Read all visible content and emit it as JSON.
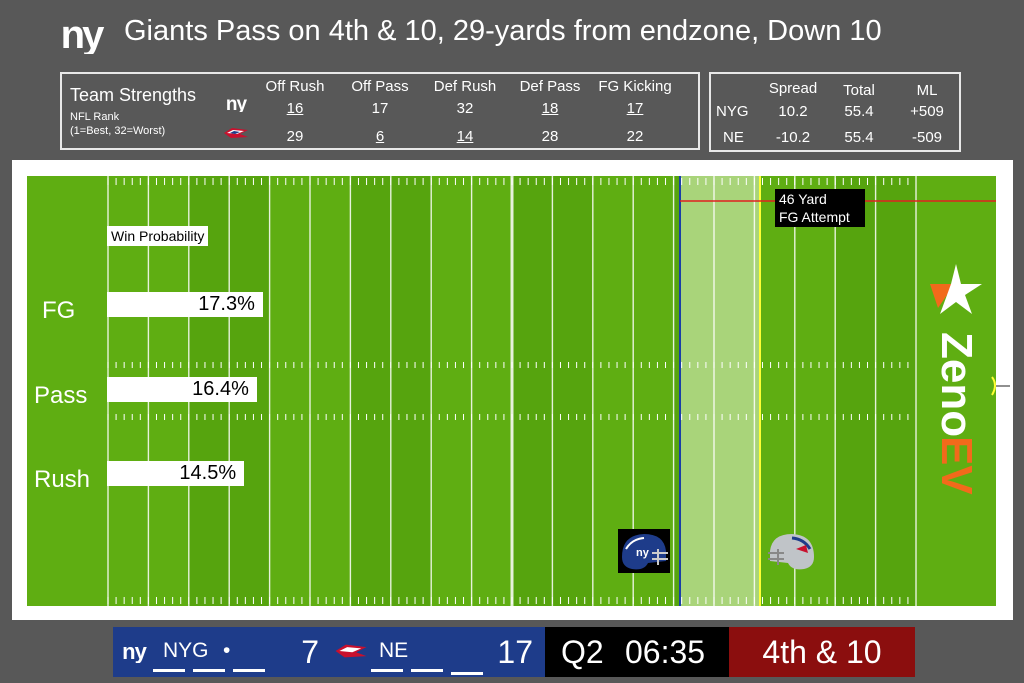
{
  "header": {
    "title": "Giants Pass on 4th & 10, 29-yards from endzone, Down 10"
  },
  "strengths": {
    "title": "Team Strengths",
    "subtitle_line1": "NFL Rank",
    "subtitle_line2": "(1=Best, 32=Worst)",
    "columns": [
      "Off Rush",
      "Off Pass",
      "Def Rush",
      "Def Pass",
      "FG Kicking"
    ],
    "rows": [
      {
        "team": "NYG",
        "values": [
          "16",
          "17",
          "32",
          "18",
          "17"
        ],
        "underline": [
          true,
          false,
          false,
          true,
          true
        ]
      },
      {
        "team": "NE",
        "values": [
          "29",
          "6",
          "14",
          "28",
          "22"
        ],
        "underline": [
          false,
          true,
          true,
          false,
          false
        ]
      }
    ]
  },
  "odds": {
    "columns": [
      "Spread",
      "Total",
      "ML"
    ],
    "rows": [
      {
        "team": "NYG",
        "spread": "10.2",
        "total": "55.4",
        "ml": "+509"
      },
      {
        "team": "NE",
        "spread": "-10.2",
        "total": "55.4",
        "ml": "-509"
      }
    ]
  },
  "field": {
    "win_prob_label": "Win Probability",
    "fg_attempt_line1": "46 Yard",
    "fg_attempt_line2": "FG Attempt",
    "plays": [
      {
        "label": "FG",
        "prob": "17.3%",
        "value": 17.3
      },
      {
        "label": "Pass",
        "prob": "16.4%",
        "value": 16.4
      },
      {
        "label": "Rush",
        "prob": "14.5%",
        "value": 14.5
      }
    ],
    "colors": {
      "turf": "#5fae12",
      "turf_alt": "#56a40e",
      "first_down_zone": "#a9d47a",
      "los": "#1a3fa8",
      "first_down": "#ffff33",
      "fg_line": "#e02020"
    },
    "brand": {
      "word1": "Zeno",
      "word2": "EV",
      "color1": "#ffffff",
      "color2": "#f26a1b"
    }
  },
  "scorebar": {
    "home": {
      "abbr": "NYG",
      "possession": "•",
      "score": "7"
    },
    "away": {
      "abbr": "NE",
      "score": "17"
    },
    "quarter": "Q2",
    "clock": "06:35",
    "down_distance": "4th & 10",
    "colors": {
      "team_bg": "#1e3c8a",
      "clock_bg": "#000000",
      "down_bg": "#8b0e0e"
    }
  }
}
